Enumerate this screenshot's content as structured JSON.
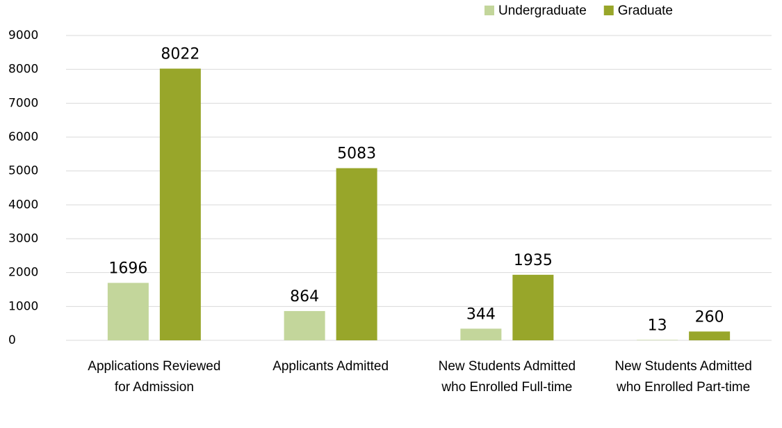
{
  "chart_data": {
    "type": "bar",
    "categories": [
      "Applications Reviewed for Admission",
      "Applicants Admitted",
      "New Students Admitted who Enrolled Full-time",
      "New Students Admitted who Enrolled Part-time"
    ],
    "series": [
      {
        "name": "Undergraduate",
        "color": "#c3d69b",
        "values": [
          1696,
          864,
          344,
          13
        ]
      },
      {
        "name": "Graduate",
        "color": "#98a62a",
        "values": [
          8022,
          5083,
          1935,
          260
        ]
      }
    ],
    "ylim": [
      0,
      9000
    ],
    "yticks": [
      0,
      1000,
      2000,
      3000,
      4000,
      5000,
      6000,
      7000,
      8000,
      9000
    ],
    "grid": true,
    "legend": "top-right"
  }
}
